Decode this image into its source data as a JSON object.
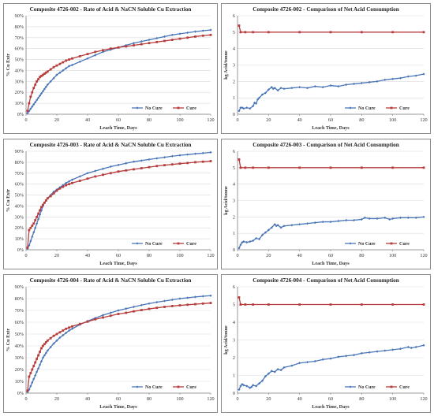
{
  "colors": {
    "no_cure": "#4a76b8",
    "cure": "#b83c3c",
    "grid": "#d9d9d9",
    "axis": "#7f7f7f"
  },
  "chart_data": [
    {
      "type": "line",
      "title": "Composite 4726-002 - Rate of Acid & NaCN Soluble Cu Extraction",
      "xlabel": "Leach Time, Days",
      "ylabel": "% Cu Extr",
      "xlim": [
        0,
        120
      ],
      "ylim": [
        0,
        90
      ],
      "xticks": [
        0,
        20,
        40,
        60,
        80,
        100,
        120
      ],
      "yticks": [
        0,
        10,
        20,
        30,
        40,
        50,
        60,
        70,
        80,
        90
      ],
      "ytick_labels": [
        "0%",
        "10%",
        "20%",
        "30%",
        "40%",
        "50%",
        "60%",
        "70%",
        "80%",
        "90%"
      ],
      "grid": true,
      "legend_position": "bottom-right",
      "series": [
        {
          "name": "No Cure",
          "color": "#4a76b8",
          "marker": "diamond",
          "x": [
            1,
            2,
            3,
            4,
            5,
            6,
            7,
            8,
            9,
            10,
            11,
            12,
            13,
            14,
            16,
            18,
            20,
            22,
            24,
            26,
            28,
            30,
            35,
            40,
            45,
            50,
            55,
            60,
            65,
            70,
            75,
            80,
            85,
            90,
            95,
            100,
            105,
            110,
            115,
            120
          ],
          "y": [
            1,
            3,
            5,
            7,
            9,
            11,
            13,
            15,
            17,
            19,
            21,
            23,
            25,
            27,
            30,
            33,
            36,
            38,
            40,
            42,
            44,
            45,
            48,
            51,
            54,
            57,
            59,
            61,
            63,
            65,
            66.5,
            68,
            69.5,
            71,
            72.5,
            73.5,
            74.5,
            75.5,
            76.3,
            77
          ]
        },
        {
          "name": "Cure",
          "color": "#b83c3c",
          "marker": "square",
          "x": [
            1,
            2,
            3,
            4,
            5,
            6,
            7,
            8,
            9,
            10,
            11,
            12,
            13,
            14,
            16,
            18,
            20,
            22,
            24,
            26,
            28,
            30,
            35,
            40,
            45,
            50,
            55,
            60,
            65,
            70,
            75,
            80,
            85,
            90,
            95,
            100,
            105,
            110,
            115,
            120
          ],
          "y": [
            3,
            10,
            16,
            20,
            24,
            27,
            30,
            32,
            34,
            35,
            36,
            37,
            38,
            39,
            41,
            43,
            44.5,
            46,
            47.5,
            49,
            50,
            51,
            53,
            55,
            57,
            58.5,
            60,
            61,
            62,
            63,
            64,
            65,
            66,
            67,
            68,
            69,
            70,
            71,
            71.8,
            72.5
          ]
        }
      ]
    },
    {
      "type": "line",
      "title": "Composite 4726-002 - Comparison of Net Acid Consumption",
      "xlabel": "Leach Time, Days",
      "ylabel": "kg Acid/tonne",
      "xlim": [
        0,
        120
      ],
      "ylim": [
        0,
        6
      ],
      "xticks": [
        0,
        20,
        40,
        60,
        80,
        100,
        120
      ],
      "yticks": [
        0,
        1,
        2,
        3,
        4,
        5,
        6
      ],
      "grid": true,
      "legend_position": "bottom-right",
      "series": [
        {
          "name": "No Cure",
          "color": "#4a76b8",
          "marker": "diamond",
          "x": [
            1,
            2,
            3,
            4,
            6,
            8,
            10,
            11,
            12,
            13,
            14,
            16,
            18,
            20,
            22,
            23,
            24,
            26,
            28,
            30,
            35,
            40,
            45,
            50,
            55,
            60,
            65,
            70,
            75,
            80,
            85,
            90,
            95,
            100,
            105,
            110,
            115,
            120
          ],
          "y": [
            0.2,
            0.4,
            0.4,
            0.35,
            0.4,
            0.35,
            0.5,
            0.7,
            0.65,
            0.9,
            1.0,
            1.2,
            1.3,
            1.5,
            1.65,
            1.55,
            1.6,
            1.45,
            1.6,
            1.55,
            1.6,
            1.65,
            1.6,
            1.7,
            1.65,
            1.75,
            1.7,
            1.8,
            1.85,
            1.9,
            1.95,
            2.0,
            2.1,
            2.15,
            2.2,
            2.3,
            2.35,
            2.45
          ]
        },
        {
          "name": "Cure",
          "color": "#b83c3c",
          "marker": "square",
          "x": [
            1,
            2,
            5,
            10,
            20,
            40,
            60,
            80,
            100,
            120
          ],
          "y": [
            5.4,
            5.0,
            5.0,
            5.0,
            5.0,
            5.0,
            5.0,
            5.0,
            5.0,
            5.0
          ]
        }
      ]
    },
    {
      "type": "line",
      "title": "Composite 4726-003 - Rate of Acid & NaCN Soluble Cu Extraction",
      "xlabel": "Leach Time, Days",
      "ylabel": "% Cu Extr",
      "xlim": [
        0,
        120
      ],
      "ylim": [
        0,
        90
      ],
      "xticks": [
        0,
        20,
        40,
        60,
        80,
        100,
        120
      ],
      "yticks": [
        0,
        10,
        20,
        30,
        40,
        50,
        60,
        70,
        80,
        90
      ],
      "ytick_labels": [
        "0%",
        "10%",
        "20%",
        "30%",
        "40%",
        "50%",
        "60%",
        "70%",
        "80%",
        "90%"
      ],
      "grid": true,
      "legend_position": "bottom-right",
      "series": [
        {
          "name": "No Cure",
          "color": "#4a76b8",
          "marker": "diamond",
          "x": [
            1,
            2,
            3,
            4,
            5,
            6,
            7,
            8,
            9,
            10,
            11,
            12,
            13,
            14,
            16,
            18,
            20,
            22,
            24,
            26,
            28,
            30,
            35,
            40,
            45,
            50,
            55,
            60,
            65,
            70,
            75,
            80,
            85,
            90,
            95,
            100,
            105,
            110,
            115,
            120
          ],
          "y": [
            1,
            4,
            8,
            12,
            16,
            20,
            24,
            28,
            32,
            36,
            40,
            43,
            45,
            47,
            50,
            53,
            55,
            57,
            59,
            61,
            62.5,
            64,
            67,
            70,
            72,
            74,
            76,
            77.5,
            79,
            80.5,
            81.5,
            82.5,
            83.5,
            84.5,
            85.5,
            86.3,
            87,
            87.7,
            88.3,
            89
          ]
        },
        {
          "name": "Cure",
          "color": "#b83c3c",
          "marker": "square",
          "x": [
            1,
            2,
            3,
            4,
            5,
            6,
            7,
            8,
            9,
            10,
            11,
            12,
            13,
            14,
            16,
            18,
            20,
            22,
            24,
            26,
            28,
            30,
            35,
            40,
            45,
            50,
            55,
            60,
            65,
            70,
            75,
            80,
            85,
            90,
            95,
            100,
            105,
            110,
            115,
            120
          ],
          "y": [
            2,
            18,
            20,
            22,
            24,
            27,
            30,
            33,
            36,
            39,
            41,
            43,
            45,
            47,
            49,
            51.5,
            54,
            56,
            57.5,
            59,
            60,
            61,
            63,
            65,
            67,
            68.5,
            70,
            71.5,
            72.5,
            73.5,
            74.5,
            75.5,
            76.5,
            77.3,
            78,
            78.7,
            79.3,
            80,
            80.5,
            81
          ]
        }
      ]
    },
    {
      "type": "line",
      "title": "Composite 4726-003 - Comparison of Net Acid Consumption",
      "xlabel": "Leach Time, Days",
      "ylabel": "kg Acid/tonne",
      "xlim": [
        0,
        120
      ],
      "ylim": [
        0,
        6
      ],
      "xticks": [
        0,
        20,
        40,
        60,
        80,
        100,
        120
      ],
      "yticks": [
        0,
        1,
        2,
        3,
        4,
        5,
        6
      ],
      "grid": true,
      "legend_position": "bottom-right",
      "series": [
        {
          "name": "No Cure",
          "color": "#4a76b8",
          "marker": "diamond",
          "x": [
            1,
            2,
            3,
            4,
            6,
            8,
            10,
            12,
            14,
            16,
            18,
            20,
            22,
            24,
            25,
            26,
            28,
            30,
            35,
            40,
            45,
            50,
            55,
            60,
            65,
            70,
            75,
            80,
            82,
            85,
            90,
            95,
            98,
            100,
            105,
            110,
            115,
            120
          ],
          "y": [
            0.1,
            0.3,
            0.45,
            0.5,
            0.45,
            0.5,
            0.55,
            0.7,
            0.65,
            0.9,
            1.05,
            1.2,
            1.35,
            1.55,
            1.45,
            1.5,
            1.35,
            1.45,
            1.5,
            1.55,
            1.6,
            1.65,
            1.7,
            1.7,
            1.75,
            1.8,
            1.8,
            1.85,
            1.95,
            1.9,
            1.9,
            1.95,
            1.85,
            1.9,
            1.95,
            1.95,
            1.95,
            2.0
          ]
        },
        {
          "name": "Cure",
          "color": "#b83c3c",
          "marker": "square",
          "x": [
            1,
            2,
            5,
            10,
            20,
            40,
            60,
            80,
            100,
            120
          ],
          "y": [
            5.5,
            5.0,
            5.0,
            5.0,
            5.0,
            5.0,
            5.0,
            5.0,
            5.0,
            5.0
          ]
        }
      ]
    },
    {
      "type": "line",
      "title": "Composite 4726-004 - Rate of Acid & NaCN Soluble Cu Extraction",
      "xlabel": "Leach Time, Days",
      "ylabel": "% Cu Extr",
      "xlim": [
        0,
        120
      ],
      "ylim": [
        0,
        90
      ],
      "xticks": [
        0,
        20,
        40,
        60,
        80,
        100,
        120
      ],
      "yticks": [
        0,
        10,
        20,
        30,
        40,
        50,
        60,
        70,
        80,
        90
      ],
      "ytick_labels": [
        "0%",
        "10%",
        "20%",
        "30%",
        "40%",
        "50%",
        "60%",
        "70%",
        "80%",
        "90%"
      ],
      "grid": true,
      "legend_position": "bottom-right",
      "series": [
        {
          "name": "No Cure",
          "color": "#4a76b8",
          "marker": "diamond",
          "x": [
            1,
            2,
            3,
            4,
            5,
            6,
            7,
            8,
            9,
            10,
            11,
            12,
            13,
            14,
            16,
            18,
            20,
            22,
            24,
            26,
            28,
            30,
            35,
            40,
            45,
            50,
            55,
            60,
            65,
            70,
            75,
            80,
            85,
            90,
            95,
            100,
            105,
            110,
            115,
            120
          ],
          "y": [
            1,
            3,
            6,
            9,
            12,
            15,
            18,
            21,
            24,
            27,
            30,
            32,
            34,
            36,
            39,
            42,
            44.5,
            47,
            49,
            51,
            53,
            54.5,
            58,
            61,
            63.5,
            66,
            68,
            70,
            71.5,
            73,
            74.5,
            75.8,
            77,
            78,
            79,
            80,
            80.7,
            81.4,
            82,
            82.5
          ]
        },
        {
          "name": "Cure",
          "color": "#b83c3c",
          "marker": "square",
          "x": [
            1,
            2,
            3,
            4,
            5,
            6,
            7,
            8,
            9,
            10,
            11,
            12,
            13,
            14,
            16,
            18,
            20,
            22,
            24,
            26,
            28,
            30,
            35,
            40,
            45,
            50,
            55,
            60,
            65,
            70,
            75,
            80,
            85,
            90,
            95,
            100,
            105,
            110,
            115,
            120
          ],
          "y": [
            2,
            14,
            17,
            20,
            23,
            26,
            29,
            32,
            35,
            38,
            40,
            41.5,
            43,
            44.5,
            46.5,
            48.5,
            50,
            51.5,
            53,
            54.5,
            55.5,
            56.5,
            58.5,
            60.5,
            62.5,
            64,
            65.5,
            67,
            68,
            69.2,
            70.3,
            71.3,
            72.2,
            73,
            73.7,
            74.3,
            74.8,
            75.3,
            75.8,
            76.3
          ]
        }
      ]
    },
    {
      "type": "line",
      "title": "Composite 4726-004 - Comparison of Net Acid Consumption",
      "xlabel": "Leach Time, Days",
      "ylabel": "kg Acid/tonne",
      "xlim": [
        0,
        120
      ],
      "ylim": [
        0,
        6
      ],
      "xticks": [
        0,
        20,
        40,
        60,
        80,
        100,
        120
      ],
      "yticks": [
        0,
        1,
        2,
        3,
        4,
        5,
        6
      ],
      "grid": true,
      "legend_position": "bottom-right",
      "series": [
        {
          "name": "No Cure",
          "color": "#4a76b8",
          "marker": "diamond",
          "x": [
            1,
            2,
            3,
            4,
            6,
            8,
            9,
            10,
            12,
            14,
            16,
            18,
            20,
            22,
            24,
            26,
            28,
            30,
            35,
            40,
            45,
            50,
            55,
            60,
            65,
            70,
            75,
            80,
            85,
            90,
            95,
            100,
            105,
            110,
            112,
            115,
            120
          ],
          "y": [
            0.2,
            0.4,
            0.5,
            0.45,
            0.4,
            0.3,
            0.35,
            0.45,
            0.4,
            0.55,
            0.7,
            0.95,
            1.1,
            1.25,
            1.2,
            1.35,
            1.3,
            1.45,
            1.55,
            1.7,
            1.75,
            1.8,
            1.9,
            1.95,
            2.05,
            2.1,
            2.15,
            2.25,
            2.3,
            2.35,
            2.4,
            2.45,
            2.5,
            2.6,
            2.55,
            2.6,
            2.7
          ]
        },
        {
          "name": "Cure",
          "color": "#b83c3c",
          "marker": "square",
          "x": [
            1,
            2,
            5,
            10,
            20,
            40,
            60,
            80,
            100,
            120
          ],
          "y": [
            5.4,
            5.0,
            5.0,
            5.0,
            5.0,
            5.0,
            5.0,
            5.0,
            5.0,
            5.0
          ]
        }
      ]
    }
  ]
}
